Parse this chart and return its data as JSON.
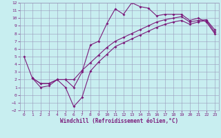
{
  "xlabel": "Windchill (Refroidissement éolien,°C)",
  "xlim": [
    -0.5,
    23.5
  ],
  "ylim": [
    -2,
    12
  ],
  "xticks": [
    0,
    1,
    2,
    3,
    4,
    5,
    6,
    7,
    8,
    9,
    10,
    11,
    12,
    13,
    14,
    15,
    16,
    17,
    18,
    19,
    20,
    21,
    22,
    23
  ],
  "yticks": [
    -2,
    -1,
    0,
    1,
    2,
    3,
    4,
    5,
    6,
    7,
    8,
    9,
    10,
    11,
    12
  ],
  "line_color": "#7B1B7B",
  "bg_color": "#C8EEF0",
  "grid_color": "#9999BB",
  "line1_x": [
    0,
    1,
    2,
    3,
    4,
    5,
    6,
    7,
    8,
    9,
    10,
    11,
    12,
    13,
    14,
    15,
    16,
    17,
    18,
    19,
    20,
    21,
    22,
    23
  ],
  "line1_y": [
    5.0,
    2.2,
    1.0,
    1.2,
    2.0,
    2.0,
    1.0,
    3.0,
    6.5,
    7.0,
    9.3,
    11.2,
    10.5,
    12.0,
    11.5,
    11.3,
    10.3,
    10.5,
    10.5,
    10.5,
    9.7,
    10.0,
    9.5,
    8.0
  ],
  "line2_x": [
    1,
    2,
    3,
    4,
    5,
    6,
    7,
    8,
    9,
    10,
    11,
    12,
    13,
    14,
    15,
    16,
    17,
    18,
    19,
    20,
    21,
    22,
    23
  ],
  "line2_y": [
    2.2,
    1.5,
    1.5,
    2.0,
    2.0,
    2.0,
    3.2,
    4.2,
    5.2,
    6.2,
    7.0,
    7.5,
    8.0,
    8.5,
    9.0,
    9.5,
    9.8,
    10.0,
    10.2,
    9.5,
    9.7,
    9.8,
    8.5
  ],
  "line3_x": [
    1,
    2,
    3,
    4,
    5,
    6,
    7,
    8,
    9,
    10,
    11,
    12,
    13,
    14,
    15,
    16,
    17,
    18,
    19,
    20,
    21,
    22,
    23
  ],
  "line3_y": [
    2.2,
    1.5,
    1.5,
    2.0,
    1.0,
    -1.5,
    -0.3,
    3.1,
    4.3,
    5.3,
    6.3,
    6.8,
    7.3,
    7.8,
    8.3,
    8.8,
    9.2,
    9.5,
    9.7,
    9.2,
    9.5,
    9.7,
    8.2
  ]
}
